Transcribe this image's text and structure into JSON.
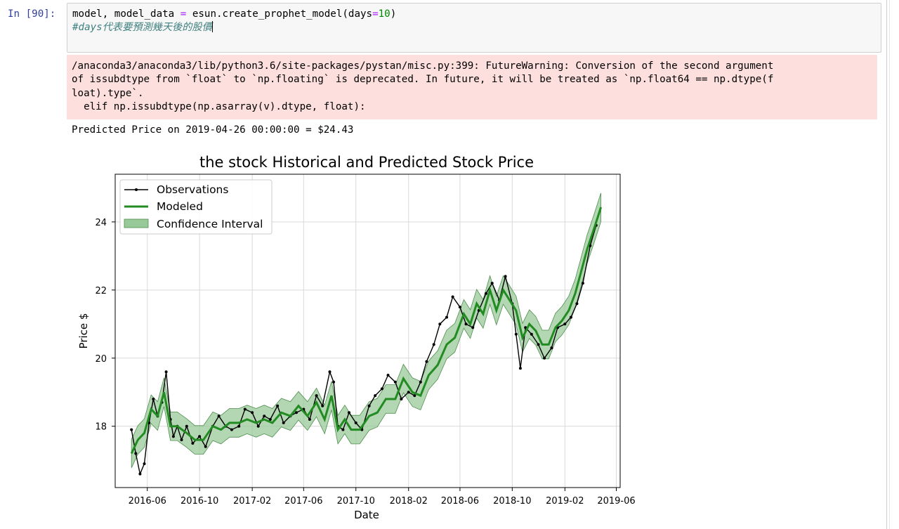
{
  "cell": {
    "prompt": "In [90]:",
    "code_line1": {
      "a": "model, model_data ",
      "eq": "=",
      "b": " esun.create_prophet_model(days",
      "eq2": "=",
      "num": "10",
      "c": ")"
    },
    "code_line2": "#days代表要預測幾天後的股價"
  },
  "output": {
    "stderr": "/anaconda3/anaconda3/lib/python3.6/site-packages/pystan/misc.py:399: FutureWarning: Conversion of the second argument\nof issubdtype from `float` to `np.floating` is deprecated. In future, it will be treated as `np.float64 == np.dtype(f\nloat).type`.\n  elif np.issubdtype(np.asarray(v).dtype, float):",
    "stdout": "Predicted Price on 2019-04-26 00:00:00 = $24.43"
  },
  "chart_data": {
    "type": "line",
    "title": "the stock Historical and Predicted Stock Price",
    "xlabel": "Date",
    "ylabel": "Price $",
    "xlim": [
      "2016-03-18",
      "2019-06-10"
    ],
    "ylim": [
      16.2,
      25.4
    ],
    "x_ticks": [
      "2016-06",
      "2016-10",
      "2017-02",
      "2017-06",
      "2017-10",
      "2018-02",
      "2018-06",
      "2018-10",
      "2019-02",
      "2019-06"
    ],
    "y_ticks": [
      18,
      20,
      22,
      24
    ],
    "grid": true,
    "legend": {
      "position": "top-left",
      "entries": [
        "Observations",
        "Modeled",
        "Confidence Interval"
      ]
    },
    "colors": {
      "observations": "#000000",
      "modeled": "#228b22",
      "interval": "#98c998"
    },
    "interval_half_width": 0.42,
    "series": [
      {
        "name": "Observations",
        "x": [
          "2016-04-25",
          "2016-05-05",
          "2016-05-15",
          "2016-05-25",
          "2016-06-05",
          "2016-06-15",
          "2016-06-25",
          "2016-07-05",
          "2016-07-15",
          "2016-07-25",
          "2016-08-01",
          "2016-08-10",
          "2016-08-20",
          "2016-09-01",
          "2016-09-15",
          "2016-10-01",
          "2016-10-15",
          "2016-11-01",
          "2016-11-15",
          "2016-12-01",
          "2016-12-15",
          "2017-01-01",
          "2017-01-15",
          "2017-02-01",
          "2017-02-15",
          "2017-03-01",
          "2017-03-15",
          "2017-04-01",
          "2017-04-15",
          "2017-05-01",
          "2017-05-15",
          "2017-06-01",
          "2017-06-15",
          "2017-07-01",
          "2017-07-15",
          "2017-08-01",
          "2017-08-10",
          "2017-08-20",
          "2017-09-01",
          "2017-09-15",
          "2017-10-01",
          "2017-10-15",
          "2017-11-01",
          "2017-11-15",
          "2017-12-01",
          "2017-12-15",
          "2018-01-01",
          "2018-01-15",
          "2018-02-01",
          "2018-02-15",
          "2018-03-01",
          "2018-03-15",
          "2018-04-01",
          "2018-04-15",
          "2018-05-01",
          "2018-05-15",
          "2018-06-01",
          "2018-06-15",
          "2018-07-01",
          "2018-07-15",
          "2018-08-01",
          "2018-08-15",
          "2018-09-01",
          "2018-09-15",
          "2018-10-01",
          "2018-10-10",
          "2018-10-20",
          "2018-11-01",
          "2018-11-15",
          "2018-12-01",
          "2018-12-15",
          "2019-01-01",
          "2019-01-15",
          "2019-02-01",
          "2019-02-15",
          "2019-03-01",
          "2019-03-15",
          "2019-04-01",
          "2019-04-15"
        ],
        "y": [
          17.9,
          17.2,
          16.6,
          16.9,
          18.1,
          18.8,
          18.3,
          18.7,
          19.6,
          18.2,
          17.7,
          18.0,
          17.6,
          18.0,
          17.5,
          17.7,
          17.4,
          18.0,
          18.3,
          18.0,
          17.9,
          18.0,
          18.5,
          18.4,
          18.0,
          18.3,
          18.2,
          18.6,
          18.1,
          18.3,
          18.4,
          18.5,
          18.2,
          18.9,
          18.6,
          19.6,
          19.3,
          18.0,
          17.9,
          18.4,
          18.1,
          17.9,
          18.6,
          18.9,
          19.1,
          19.5,
          19.3,
          18.8,
          19.0,
          18.9,
          19.3,
          19.9,
          20.4,
          21.0,
          21.2,
          21.8,
          21.5,
          21.0,
          20.9,
          21.4,
          21.9,
          22.2,
          21.7,
          22.4,
          21.6,
          20.7,
          19.7,
          20.9,
          20.7,
          20.4,
          20.0,
          20.3,
          20.9,
          21.0,
          21.2,
          21.6,
          22.2,
          23.3,
          23.9
        ]
      },
      {
        "name": "Modeled",
        "x": [
          "2016-04-25",
          "2016-05-10",
          "2016-05-25",
          "2016-06-10",
          "2016-06-25",
          "2016-07-10",
          "2016-07-25",
          "2016-08-10",
          "2016-09-01",
          "2016-09-20",
          "2016-10-10",
          "2016-11-01",
          "2016-11-20",
          "2016-12-10",
          "2017-01-01",
          "2017-01-20",
          "2017-02-10",
          "2017-03-01",
          "2017-03-20",
          "2017-04-10",
          "2017-05-01",
          "2017-05-20",
          "2017-06-10",
          "2017-07-01",
          "2017-07-20",
          "2017-08-05",
          "2017-08-20",
          "2017-09-05",
          "2017-09-20",
          "2017-10-10",
          "2017-11-01",
          "2017-11-20",
          "2017-12-10",
          "2018-01-01",
          "2018-01-20",
          "2018-02-10",
          "2018-03-01",
          "2018-03-20",
          "2018-04-10",
          "2018-05-01",
          "2018-05-20",
          "2018-06-10",
          "2018-06-25",
          "2018-07-10",
          "2018-07-25",
          "2018-08-10",
          "2018-08-25",
          "2018-09-10",
          "2018-09-25",
          "2018-10-10",
          "2018-10-25",
          "2018-11-10",
          "2018-11-25",
          "2018-12-10",
          "2018-12-25",
          "2019-01-10",
          "2019-01-25",
          "2019-02-10",
          "2019-02-25",
          "2019-03-10",
          "2019-03-25",
          "2019-04-10",
          "2019-04-26"
        ],
        "y": [
          17.2,
          17.6,
          17.8,
          18.5,
          18.3,
          19.0,
          18.0,
          18.0,
          17.8,
          17.6,
          17.6,
          18.0,
          17.9,
          18.1,
          18.1,
          18.2,
          18.1,
          18.2,
          18.1,
          18.4,
          18.3,
          18.6,
          18.3,
          18.7,
          18.2,
          18.9,
          17.9,
          18.2,
          17.9,
          17.9,
          18.3,
          18.4,
          18.8,
          18.8,
          19.4,
          19.0,
          18.9,
          19.5,
          19.8,
          20.4,
          20.6,
          21.3,
          21.0,
          21.6,
          21.3,
          22.0,
          21.4,
          22.0,
          21.7,
          21.4,
          20.6,
          21.0,
          20.8,
          20.4,
          20.4,
          20.9,
          21.1,
          21.4,
          21.9,
          22.5,
          23.2,
          23.8,
          24.43
        ]
      }
    ]
  }
}
